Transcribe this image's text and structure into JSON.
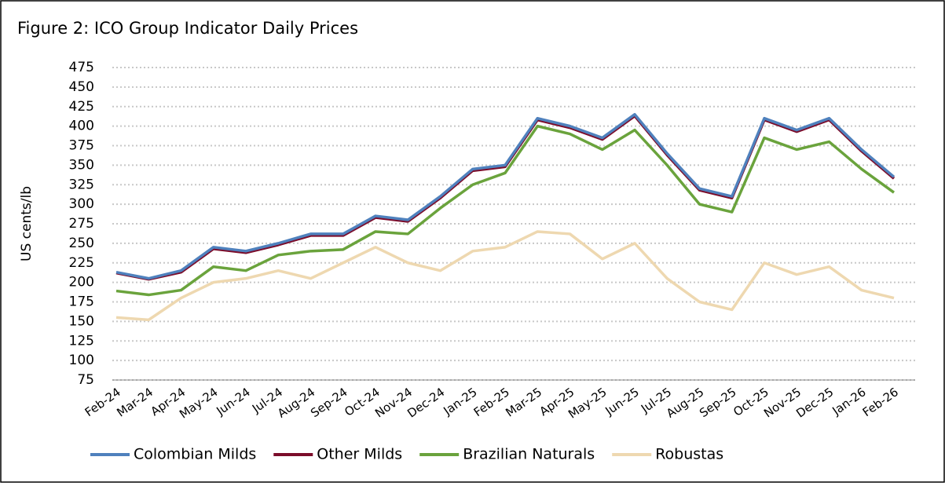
{
  "chart_data": {
    "type": "line",
    "title": "Figure 2: ICO Group Indicator Daily Prices",
    "ylabel": "US cents/lb",
    "categories": [
      "Feb-24",
      "Mar-24",
      "Apr-24",
      "May-24",
      "Jun-24",
      "Jul-24",
      "Aug-24",
      "Sep-24",
      "Oct-24",
      "Nov-24",
      "Dec-24",
      "Jan-25",
      "Feb-25",
      "Mar-25",
      "Apr-25",
      "May-25",
      "Jun-25",
      "Jul-25",
      "Aug-25",
      "Sep-25",
      "Oct-25",
      "Nov-25",
      "Dec-25",
      "Jan-26",
      "Feb-26"
    ],
    "series": [
      {
        "name": "Colombian Milds",
        "color": "#4f81bd",
        "values": [
          213,
          205,
          215,
          245,
          240,
          250,
          262,
          262,
          285,
          280,
          310,
          345,
          350,
          410,
          400,
          385,
          415,
          365,
          320,
          310,
          410,
          395,
          410,
          370,
          335
        ]
      },
      {
        "name": "Other Milds",
        "color": "#7b0c2a",
        "values": [
          212,
          204,
          213,
          243,
          238,
          248,
          260,
          260,
          283,
          278,
          308,
          343,
          348,
          408,
          398,
          383,
          413,
          363,
          318,
          308,
          408,
          393,
          408,
          368,
          333
        ]
      },
      {
        "name": "Brazilian Naturals",
        "color": "#6aa33c",
        "values": [
          189,
          184,
          190,
          220,
          215,
          235,
          240,
          242,
          265,
          262,
          295,
          325,
          340,
          400,
          390,
          370,
          395,
          350,
          300,
          290,
          385,
          370,
          380,
          345,
          315
        ]
      },
      {
        "name": "Robustas",
        "color": "#eed8b0",
        "values": [
          155,
          152,
          180,
          200,
          205,
          215,
          205,
          225,
          245,
          225,
          215,
          240,
          245,
          265,
          262,
          230,
          250,
          205,
          175,
          165,
          225,
          210,
          220,
          190,
          180
        ]
      }
    ],
    "ylim": [
      75,
      475
    ],
    "yticks": [
      75,
      100,
      125,
      150,
      175,
      200,
      225,
      250,
      275,
      300,
      325,
      350,
      375,
      400,
      425,
      450,
      475
    ],
    "grid": true
  }
}
